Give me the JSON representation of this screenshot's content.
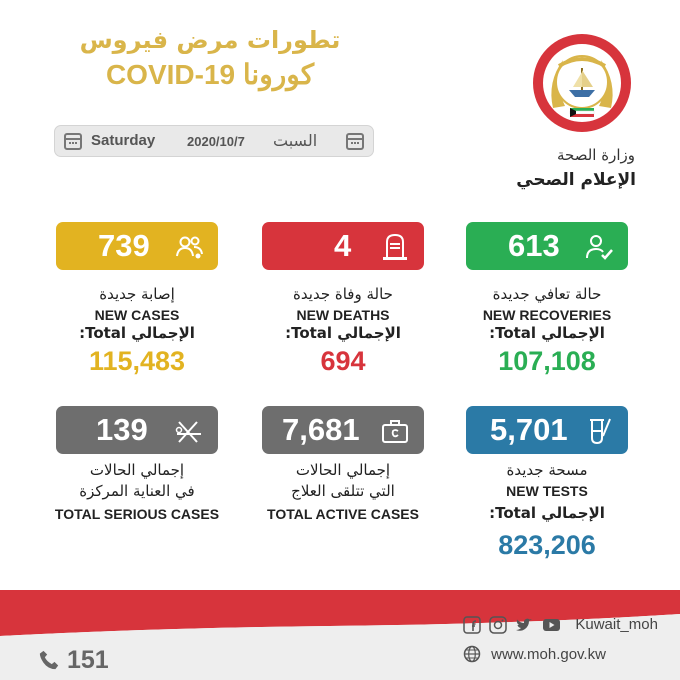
{
  "header": {
    "title_ar": "تطورات مرض فيروس",
    "title_line2": "كورونا COVID-19"
  },
  "date_bar": {
    "day_en": "Saturday",
    "date": "2020/10/7",
    "day_ar": "السبت"
  },
  "ministry": {
    "name_ar": "وزارة الصحة",
    "department_ar": "الإعلام الصحي",
    "emblem_text": "دولة الكويت"
  },
  "stats": {
    "new_cases": {
      "value": "739",
      "label_ar": "إصابة جديدة",
      "label_en": "NEW CASES",
      "total_label": "الإجمالي Total:",
      "total": "115,483"
    },
    "new_deaths": {
      "value": "4",
      "label_ar": "حالة وفاة جديدة",
      "label_en": "NEW DEATHS",
      "total_label": "الإجمالي Total:",
      "total": "694"
    },
    "new_recoveries": {
      "value": "613",
      "label_ar": "حالة تعافي جديدة",
      "label_en": "NEW RECOVERIES",
      "total_label": "الإجمالي Total:",
      "total": "107,108"
    },
    "serious_cases": {
      "value": "139",
      "label_ar_1": "إجمالي الحالات",
      "label_ar_2": "في العناية المركزة",
      "label_en": "TOTAL SERIOUS CASES"
    },
    "active_cases": {
      "value": "7,681",
      "label_ar_1": "إجمالي الحالات",
      "label_ar_2": "التي تتلقى العلاج",
      "label_en": "TOTAL ACTIVE CASES"
    },
    "new_tests": {
      "value": "5,701",
      "label_ar": "مسحة جديدة",
      "label_en": "NEW TESTS",
      "total_label": "الإجمالي Total:",
      "total": "823,206"
    }
  },
  "colors": {
    "gold": "#d9b54a",
    "yellow": "#e2b321",
    "red": "#d7343c",
    "green": "#2aae54",
    "gray": "#6e6e6e",
    "blue": "#2b7aa6"
  },
  "footer": {
    "phone": "151",
    "handle": "Kuwait_moh",
    "website": "www.moh.gov.kw",
    "social_icons": [
      "facebook-icon",
      "instagram-icon",
      "twitter-icon",
      "youtube-icon"
    ]
  }
}
